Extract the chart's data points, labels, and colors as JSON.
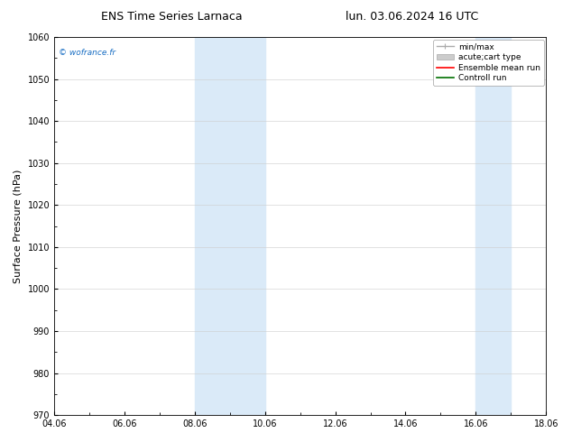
{
  "title_left": "ENS Time Series Larnaca",
  "title_right": "lun. 03.06.2024 16 UTC",
  "ylabel": "Surface Pressure (hPa)",
  "ylim": [
    970,
    1060
  ],
  "yticks": [
    970,
    980,
    990,
    1000,
    1010,
    1020,
    1030,
    1040,
    1050,
    1060
  ],
  "xlim_start": 4.06,
  "xlim_end": 18.06,
  "xtick_labels": [
    "04.06",
    "06.06",
    "08.06",
    "10.06",
    "12.06",
    "14.06",
    "16.06",
    "18.06"
  ],
  "xtick_positions": [
    4.06,
    6.06,
    8.06,
    10.06,
    12.06,
    14.06,
    16.06,
    18.06
  ],
  "shaded_bands": [
    {
      "x_start": 8.06,
      "x_end": 10.06
    },
    {
      "x_start": 16.06,
      "x_end": 17.06
    }
  ],
  "shaded_color": "#daeaf8",
  "watermark_text": "© wofrance.fr",
  "watermark_color": "#1a6fc4",
  "legend_entries": [
    {
      "label": "min/max"
    },
    {
      "label": "acute;cart type"
    },
    {
      "label": "Ensemble mean run"
    },
    {
      "label": "Controll run"
    }
  ],
  "bg_color": "#ffffff",
  "grid_color": "#cccccc",
  "title_fontsize": 9,
  "tick_fontsize": 7,
  "label_fontsize": 8,
  "legend_fontsize": 6.5
}
